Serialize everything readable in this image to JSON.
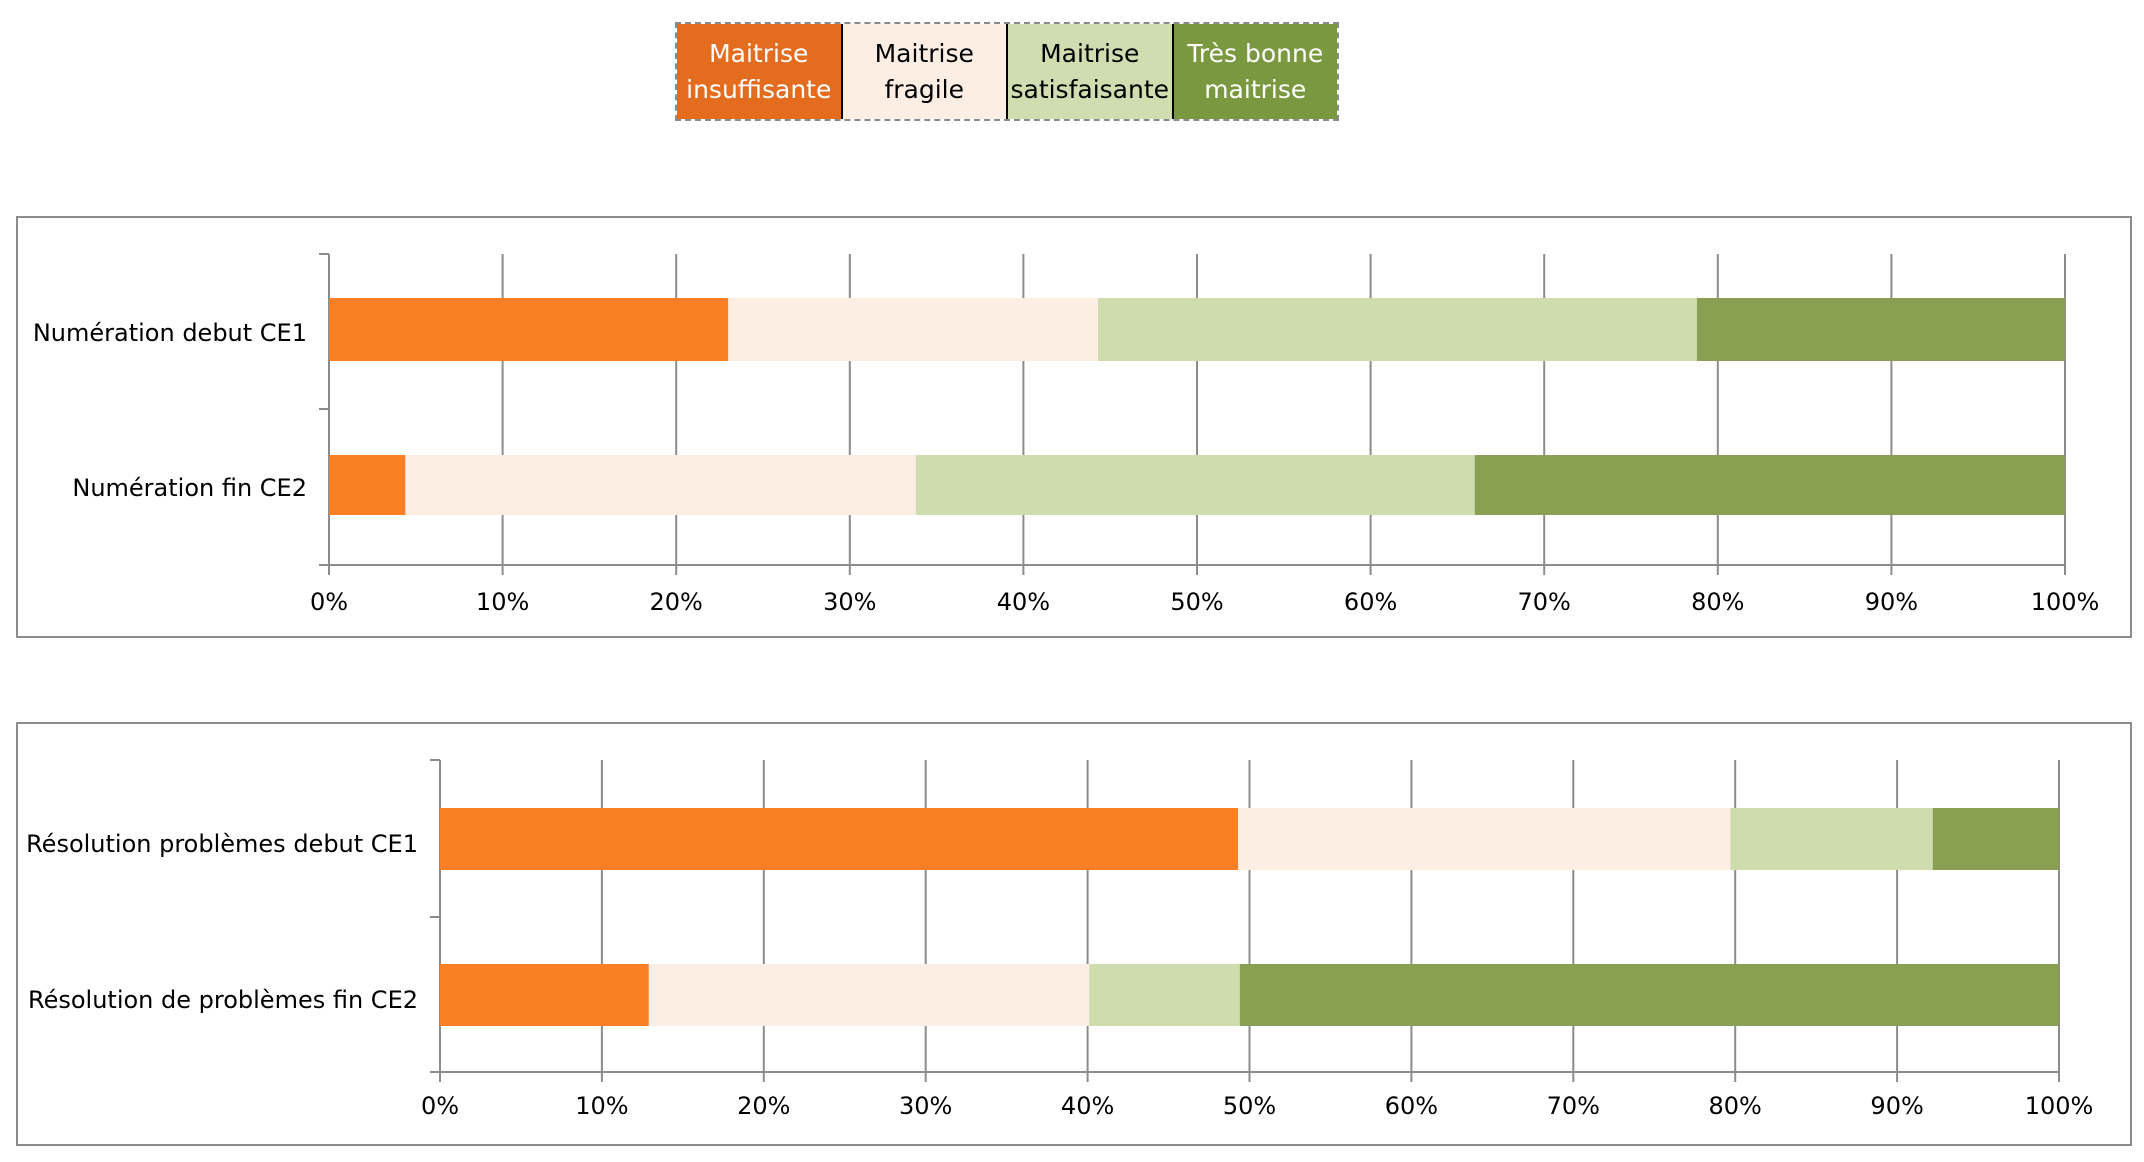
{
  "legend": [
    {
      "label": "Maitrise\ninsuffisante",
      "color": "#e36c1f",
      "text_color": "#ffffff"
    },
    {
      "label": "Maitrise\nfragile",
      "color": "#fdeee4",
      "text_color": "#000000"
    },
    {
      "label": "Maitrise\nsatisfaisante",
      "color": "#cfddb0",
      "text_color": "#000000"
    },
    {
      "label": "Très bonne\nmaitrise",
      "color": "#7a983f",
      "text_color": "#ffffff"
    }
  ],
  "series_colors": [
    "#fb7f24",
    "#fdeee4",
    "#cfdcad",
    "#899f52"
  ],
  "chart_data": [
    {
      "type": "bar",
      "orientation": "horizontal",
      "stacked": true,
      "categories": [
        "Numération debut CE1",
        "Numération fin CE2"
      ],
      "series": [
        {
          "name": "Maitrise insuffisante",
          "values": [
            23,
            4.4
          ]
        },
        {
          "name": "Maitrise fragile",
          "values": [
            21.3,
            29.4
          ]
        },
        {
          "name": "Maitrise satisfaisante",
          "values": [
            34.5,
            32.2
          ]
        },
        {
          "name": "Très bonne maitrise",
          "values": [
            21.2,
            34
          ]
        }
      ],
      "xlim": [
        0,
        100
      ],
      "ticks": [
        "0%",
        "10%",
        "20%",
        "30%",
        "40%",
        "50%",
        "60%",
        "70%",
        "80%",
        "90%",
        "100%"
      ],
      "grid": true
    },
    {
      "type": "bar",
      "orientation": "horizontal",
      "stacked": true,
      "categories": [
        "Résolution problèmes debut CE1",
        "Résolution de problèmes fin CE2"
      ],
      "series": [
        {
          "name": "Maitrise insuffisante",
          "values": [
            49.3,
            12.9
          ]
        },
        {
          "name": "Maitrise fragile",
          "values": [
            30.4,
            27.2
          ]
        },
        {
          "name": "Maitrise satisfaisante",
          "values": [
            12.5,
            9.3
          ]
        },
        {
          "name": "Très bonne maitrise",
          "values": [
            7.8,
            50.6
          ]
        }
      ],
      "xlim": [
        0,
        100
      ],
      "ticks": [
        "0%",
        "10%",
        "20%",
        "30%",
        "40%",
        "50%",
        "60%",
        "70%",
        "80%",
        "90%",
        "100%"
      ],
      "grid": true
    }
  ]
}
